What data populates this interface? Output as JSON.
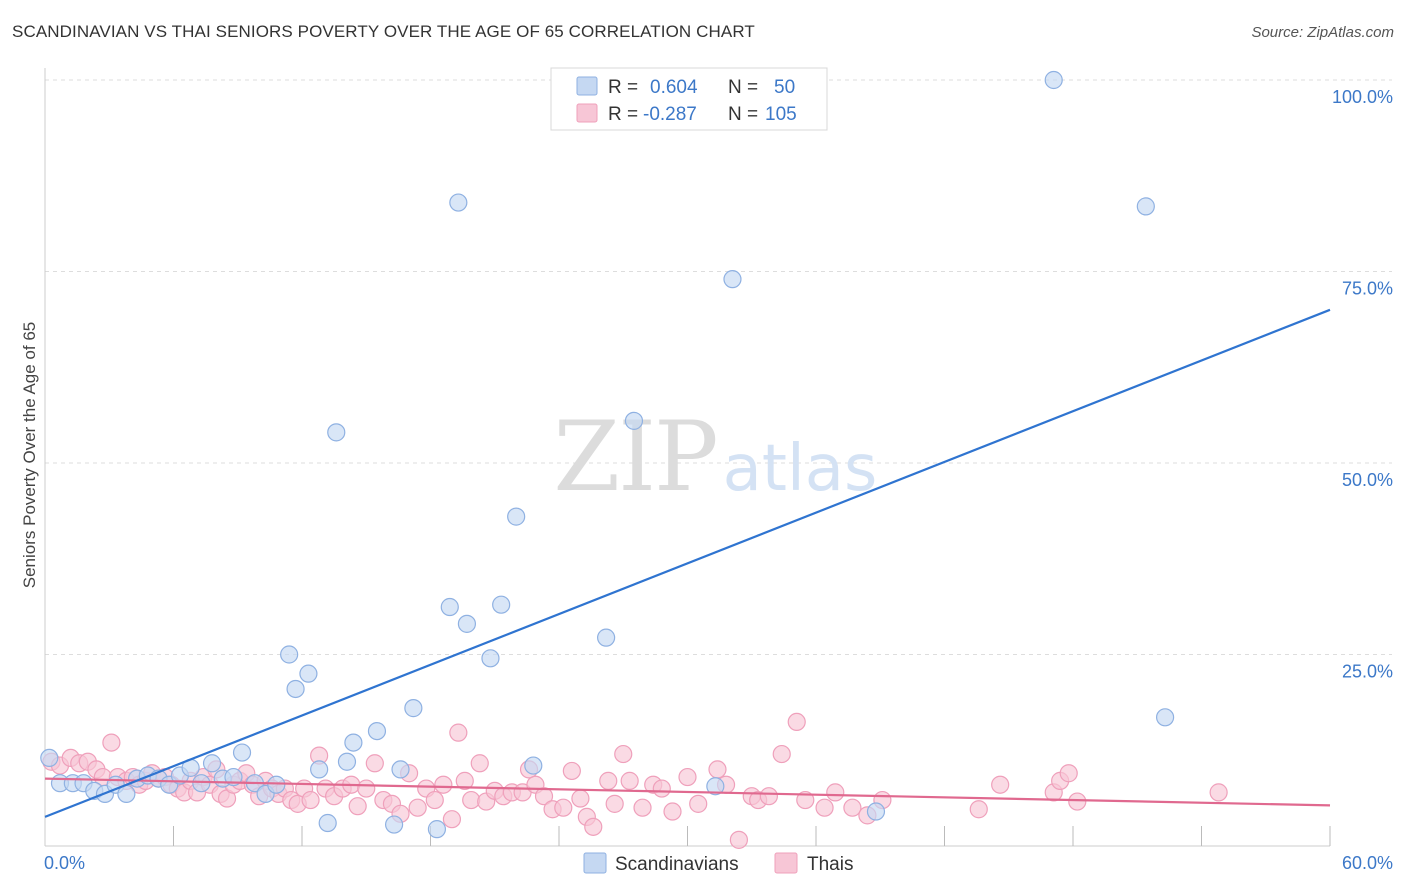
{
  "title": "SCANDINAVIAN VS THAI SENIORS POVERTY OVER THE AGE OF 65 CORRELATION CHART",
  "source": "Source: ZipAtlas.com",
  "watermark": {
    "zip": "ZIP",
    "atlas": "atlas"
  },
  "colors": {
    "blue_fill": "#c5d8f2",
    "blue_stroke": "#8fb1e2",
    "blue_line": "#2f74d0",
    "pink_fill": "#f7c6d6",
    "pink_stroke": "#efa0bb",
    "pink_line": "#e0698f",
    "axis_label": "#3c78c8",
    "grid": "#dddddd"
  },
  "legend": {
    "row1": {
      "r_label": "R =",
      "r_value": "0.604",
      "n_label": "N =",
      "n_value": "50"
    },
    "row2": {
      "r_label": "R =",
      "r_value": "-0.287",
      "n_label": "N =",
      "n_value": "105"
    }
  },
  "chart_data": {
    "type": "scatter",
    "title": "SCANDINAVIAN VS THAI SENIORS POVERTY OVER THE AGE OF 65 CORRELATION CHART",
    "xlabel": "",
    "ylabel": "Seniors Poverty Over the Age of 65",
    "xlim": [
      0,
      60
    ],
    "ylim": [
      0,
      105
    ],
    "x_tick_labels": [
      "0.0%",
      "60.0%"
    ],
    "y_ticks": [
      25,
      50,
      75,
      100
    ],
    "y_tick_labels": [
      "25.0%",
      "50.0%",
      "75.0%",
      "100.0%"
    ],
    "legend_position": "bottom-center",
    "series": [
      {
        "name": "Scandinavians",
        "r": 0.604,
        "n": 50,
        "trend": {
          "x": [
            0,
            60
          ],
          "y": [
            3.8,
            70
          ]
        },
        "points": [
          [
            0.2,
            11.5
          ],
          [
            0.7,
            8.2
          ],
          [
            1.3,
            8.2
          ],
          [
            1.8,
            8.2
          ],
          [
            2.3,
            7.2
          ],
          [
            2.8,
            6.8
          ],
          [
            3.3,
            8.0
          ],
          [
            3.8,
            6.8
          ],
          [
            4.3,
            8.8
          ],
          [
            4.8,
            9.2
          ],
          [
            5.3,
            8.8
          ],
          [
            5.8,
            8.0
          ],
          [
            6.3,
            9.2
          ],
          [
            6.8,
            10.2
          ],
          [
            7.3,
            8.2
          ],
          [
            7.8,
            10.8
          ],
          [
            8.3,
            8.8
          ],
          [
            8.8,
            9.0
          ],
          [
            9.2,
            12.2
          ],
          [
            9.8,
            8.2
          ],
          [
            10.3,
            6.8
          ],
          [
            10.8,
            8.0
          ],
          [
            11.4,
            25.0
          ],
          [
            11.7,
            20.5
          ],
          [
            12.3,
            22.5
          ],
          [
            12.8,
            10.0
          ],
          [
            13.2,
            3.0
          ],
          [
            13.6,
            54.0
          ],
          [
            14.1,
            11.0
          ],
          [
            14.4,
            13.5
          ],
          [
            15.5,
            15.0
          ],
          [
            16.3,
            2.8
          ],
          [
            16.6,
            10.0
          ],
          [
            17.2,
            18.0
          ],
          [
            18.3,
            2.2
          ],
          [
            18.9,
            31.2
          ],
          [
            19.3,
            84.0
          ],
          [
            19.7,
            29.0
          ],
          [
            20.8,
            24.5
          ],
          [
            21.3,
            31.5
          ],
          [
            22.0,
            43.0
          ],
          [
            22.8,
            10.5
          ],
          [
            26.2,
            27.2
          ],
          [
            27.5,
            55.5
          ],
          [
            31.3,
            7.8
          ],
          [
            32.1,
            74.0
          ],
          [
            38.8,
            4.5
          ],
          [
            47.1,
            100.0
          ],
          [
            51.4,
            83.5
          ],
          [
            52.3,
            16.8
          ]
        ]
      },
      {
        "name": "Thais",
        "r": -0.287,
        "n": 105,
        "trend": {
          "x": [
            0,
            60
          ],
          "y": [
            8.8,
            5.3
          ]
        },
        "points": [
          [
            0.3,
            11.0
          ],
          [
            0.7,
            10.5
          ],
          [
            1.2,
            11.5
          ],
          [
            1.6,
            10.8
          ],
          [
            2.0,
            11.0
          ],
          [
            2.4,
            10.0
          ],
          [
            2.7,
            9.0
          ],
          [
            3.1,
            13.5
          ],
          [
            3.4,
            9.0
          ],
          [
            3.8,
            8.5
          ],
          [
            4.1,
            9.0
          ],
          [
            4.4,
            8.0
          ],
          [
            4.7,
            8.5
          ],
          [
            5.0,
            9.5
          ],
          [
            5.3,
            8.8
          ],
          [
            5.6,
            9.0
          ],
          [
            5.9,
            8.0
          ],
          [
            6.2,
            7.5
          ],
          [
            6.5,
            7.0
          ],
          [
            6.8,
            8.5
          ],
          [
            7.1,
            7.0
          ],
          [
            7.4,
            9.0
          ],
          [
            7.7,
            8.0
          ],
          [
            8.0,
            10.0
          ],
          [
            8.2,
            6.8
          ],
          [
            8.5,
            6.2
          ],
          [
            8.8,
            8.0
          ],
          [
            9.1,
            8.5
          ],
          [
            9.4,
            9.5
          ],
          [
            9.7,
            8.0
          ],
          [
            10.0,
            6.5
          ],
          [
            10.3,
            8.5
          ],
          [
            10.6,
            7.5
          ],
          [
            10.9,
            6.8
          ],
          [
            11.2,
            7.5
          ],
          [
            11.5,
            6.0
          ],
          [
            11.8,
            5.5
          ],
          [
            12.1,
            7.5
          ],
          [
            12.4,
            6.0
          ],
          [
            12.8,
            11.8
          ],
          [
            13.1,
            7.5
          ],
          [
            13.5,
            6.5
          ],
          [
            13.9,
            7.5
          ],
          [
            14.3,
            8.0
          ],
          [
            14.6,
            5.2
          ],
          [
            15.0,
            7.5
          ],
          [
            15.4,
            10.8
          ],
          [
            15.8,
            6.0
          ],
          [
            16.2,
            5.5
          ],
          [
            16.6,
            4.2
          ],
          [
            17.0,
            9.5
          ],
          [
            17.4,
            5.0
          ],
          [
            17.8,
            7.5
          ],
          [
            18.2,
            6.0
          ],
          [
            18.6,
            8.0
          ],
          [
            19.0,
            3.5
          ],
          [
            19.3,
            14.8
          ],
          [
            19.6,
            8.5
          ],
          [
            19.9,
            6.0
          ],
          [
            20.3,
            10.8
          ],
          [
            20.6,
            5.8
          ],
          [
            21.0,
            7.2
          ],
          [
            21.4,
            6.5
          ],
          [
            21.8,
            7.0
          ],
          [
            22.3,
            7.0
          ],
          [
            22.6,
            10.0
          ],
          [
            22.9,
            8.0
          ],
          [
            23.3,
            6.5
          ],
          [
            23.7,
            4.8
          ],
          [
            24.2,
            5.0
          ],
          [
            24.6,
            9.8
          ],
          [
            25.0,
            6.2
          ],
          [
            25.3,
            3.8
          ],
          [
            25.6,
            2.5
          ],
          [
            26.3,
            8.5
          ],
          [
            26.6,
            5.5
          ],
          [
            27.0,
            12.0
          ],
          [
            27.3,
            8.5
          ],
          [
            27.9,
            5.0
          ],
          [
            28.4,
            8.0
          ],
          [
            28.8,
            7.5
          ],
          [
            29.3,
            4.5
          ],
          [
            30.0,
            9.0
          ],
          [
            30.5,
            5.5
          ],
          [
            31.4,
            10.0
          ],
          [
            31.8,
            8.0
          ],
          [
            32.4,
            0.8
          ],
          [
            33.0,
            6.5
          ],
          [
            33.3,
            6.0
          ],
          [
            33.8,
            6.5
          ],
          [
            34.4,
            12.0
          ],
          [
            35.1,
            16.2
          ],
          [
            35.5,
            6.0
          ],
          [
            36.4,
            5.0
          ],
          [
            36.9,
            7.0
          ],
          [
            37.7,
            5.0
          ],
          [
            38.4,
            4.0
          ],
          [
            39.1,
            6.0
          ],
          [
            43.6,
            4.8
          ],
          [
            44.6,
            8.0
          ],
          [
            47.1,
            7.0
          ],
          [
            47.4,
            8.5
          ],
          [
            47.8,
            9.5
          ],
          [
            48.2,
            5.8
          ],
          [
            54.8,
            7.0
          ]
        ]
      }
    ]
  }
}
